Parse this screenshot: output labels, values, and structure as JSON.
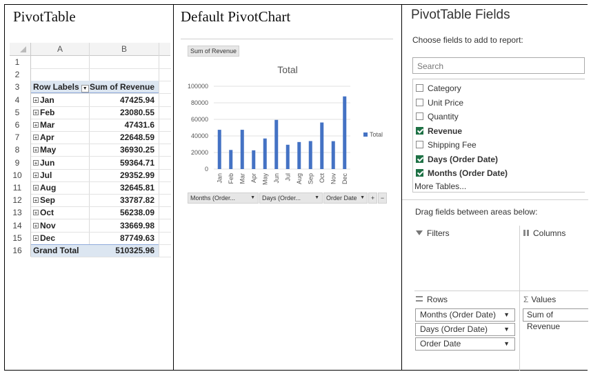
{
  "panels": {
    "left_title": "PivotTable",
    "middle_title": "Default PivotChart",
    "right_title": "PivotTable Fields"
  },
  "sheet": {
    "col_a": "A",
    "col_b": "B",
    "row_numbers": [
      "1",
      "2",
      "3",
      "4",
      "5",
      "6",
      "7",
      "8",
      "9",
      "10",
      "11",
      "12",
      "13",
      "14",
      "15",
      "16"
    ],
    "header_row_labels": "Row Labels",
    "header_sum": "Sum of Revenue",
    "rows": [
      {
        "label": "Jan",
        "value": "47425.94"
      },
      {
        "label": "Feb",
        "value": "23080.55"
      },
      {
        "label": "Mar",
        "value": "47431.6"
      },
      {
        "label": "Apr",
        "value": "22648.59"
      },
      {
        "label": "May",
        "value": "36930.25"
      },
      {
        "label": "Jun",
        "value": "59364.71"
      },
      {
        "label": "Jul",
        "value": "29352.99"
      },
      {
        "label": "Aug",
        "value": "32645.81"
      },
      {
        "label": "Sep",
        "value": "33787.82"
      },
      {
        "label": "Oct",
        "value": "56238.09"
      },
      {
        "label": "Nov",
        "value": "33669.98"
      },
      {
        "label": "Dec",
        "value": "87749.63"
      }
    ],
    "grand_total_label": "Grand Total",
    "grand_total_value": "510325.96"
  },
  "chart_buttons": {
    "value_field": "Sum of Revenue",
    "axis_fields": [
      "Months (Order...",
      "Days (Order...",
      "Order Date"
    ],
    "expand": "+",
    "collapse": "−"
  },
  "chart_data": {
    "type": "bar",
    "title": "Total",
    "categories": [
      "Jan",
      "Feb",
      "Mar",
      "Apr",
      "May",
      "Jun",
      "Jul",
      "Aug",
      "Sep",
      "Oct",
      "Nov",
      "Dec"
    ],
    "series": [
      {
        "name": "Total",
        "values": [
          47425.94,
          23080.55,
          47431.6,
          22648.59,
          36930.25,
          59364.71,
          29352.99,
          32645.81,
          33787.82,
          56238.09,
          33669.98,
          87749.63
        ],
        "color": "#4472c4"
      }
    ],
    "y_ticks": [
      "0",
      "20000",
      "40000",
      "60000",
      "80000",
      "100000"
    ],
    "ylim": [
      0,
      100000
    ],
    "legend_position": "right",
    "grid": true
  },
  "fields_pane": {
    "subtitle": "Choose fields to add to report:",
    "search_placeholder": "Search",
    "fields": [
      {
        "label": "Category",
        "checked": false
      },
      {
        "label": "Unit Price",
        "checked": false
      },
      {
        "label": "Quantity",
        "checked": false
      },
      {
        "label": "Revenue",
        "checked": true
      },
      {
        "label": "Shipping Fee",
        "checked": false
      },
      {
        "label": "Days (Order Date)",
        "checked": true
      },
      {
        "label": "Months (Order Date)",
        "checked": true
      }
    ],
    "more_tables": "More Tables...",
    "drag_label": "Drag fields between areas below:",
    "filters_label": "Filters",
    "columns_label": "Columns",
    "rows_label": "Rows",
    "values_label": "Values",
    "rows_items": [
      "Months (Order Date)",
      "Days (Order Date)",
      "Order Date"
    ],
    "values_items": [
      "Sum of Revenue"
    ]
  }
}
